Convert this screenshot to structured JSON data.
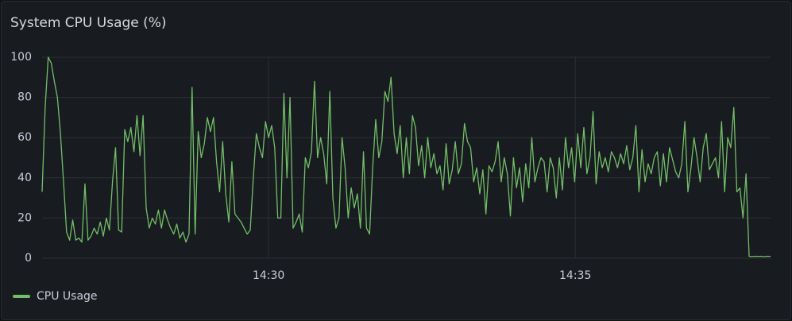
{
  "chart_data": {
    "type": "line",
    "title": "System CPU Usage (%)",
    "ylim": [
      0,
      100
    ],
    "yticks": [
      0,
      20,
      40,
      60,
      80,
      100
    ],
    "xlim": [
      0,
      238
    ],
    "xticks": [
      {
        "value": 74,
        "label": "14:30"
      },
      {
        "value": 174.2,
        "label": "14:35"
      }
    ],
    "grid": true,
    "legend": "bottom-left",
    "series": [
      {
        "name": "CPU Usage",
        "color": "#73bf69",
        "values": [
          33,
          75,
          100,
          97,
          88,
          80,
          62,
          38,
          13,
          9,
          19,
          9,
          10,
          8,
          37,
          9,
          11,
          15,
          12,
          18,
          11,
          20,
          14,
          38,
          55,
          14,
          13,
          64,
          58,
          65,
          53,
          71,
          51,
          71,
          25,
          15,
          20,
          17,
          24,
          15,
          24,
          19,
          15,
          12,
          17,
          10,
          13,
          8,
          12,
          85,
          12,
          63,
          50,
          57,
          70,
          63,
          70,
          48,
          33,
          58,
          32,
          18,
          48,
          22,
          20,
          18,
          15,
          12,
          14,
          40,
          62,
          55,
          50,
          68,
          60,
          66,
          55,
          20,
          20,
          82,
          40,
          80,
          15,
          18,
          22,
          13,
          50,
          45,
          53,
          88,
          50,
          60,
          52,
          37,
          83,
          30,
          15,
          20,
          60,
          45,
          20,
          35,
          25,
          32,
          15,
          53,
          15,
          12,
          45,
          69,
          50,
          58,
          83,
          78,
          90,
          62,
          52,
          66,
          40,
          60,
          42,
          71,
          65,
          46,
          56,
          40,
          60,
          45,
          52,
          42,
          46,
          34,
          57,
          37,
          44,
          58,
          42,
          47,
          67,
          58,
          55,
          38,
          45,
          32,
          44,
          22,
          46,
          43,
          48,
          58,
          38,
          50,
          42,
          21,
          50,
          35,
          45,
          28,
          47,
          35,
          60,
          38,
          45,
          50,
          48,
          33,
          50,
          45,
          30,
          50,
          34,
          60,
          45,
          55,
          38,
          62,
          45,
          65,
          42,
          50,
          73,
          37,
          53,
          45,
          50,
          43,
          53,
          50,
          45,
          52,
          47,
          56,
          44,
          50,
          66,
          33,
          54,
          38,
          47,
          42,
          50,
          53,
          36,
          52,
          38,
          55,
          49,
          43,
          40,
          47,
          68,
          33,
          45,
          60,
          50,
          38,
          55,
          62,
          44,
          47,
          50,
          40,
          68,
          33,
          60,
          55,
          75,
          33,
          35,
          20,
          42,
          1,
          0.8,
          1,
          0.9,
          1,
          0.8,
          1,
          0.9
        ]
      }
    ]
  }
}
